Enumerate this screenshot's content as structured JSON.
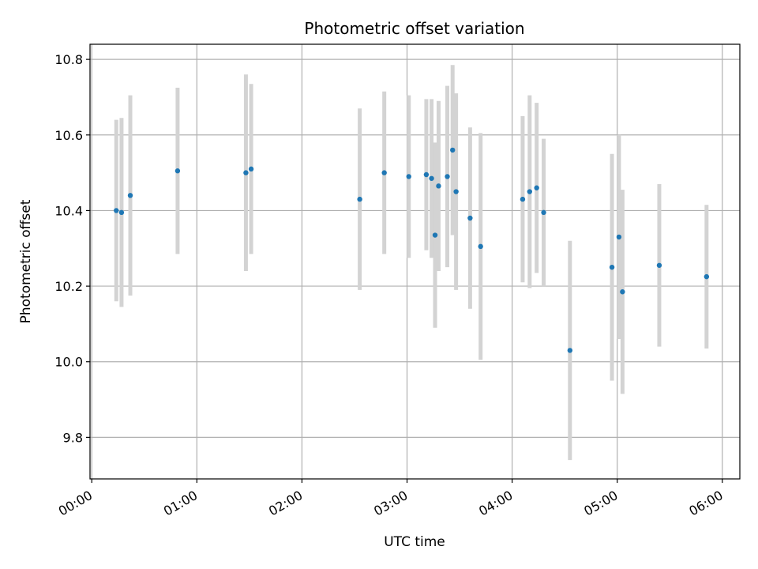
{
  "chart_data": {
    "type": "scatter",
    "title": "Photometric offset variation",
    "xlabel": "UTC time",
    "ylabel": "Photometric offset",
    "x_ticks": [
      "00:00",
      "01:00",
      "02:00",
      "03:00",
      "04:00",
      "05:00",
      "06:00"
    ],
    "y_ticks": [
      "9.8",
      "10.0",
      "10.2",
      "10.4",
      "10.6",
      "10.8"
    ],
    "xlim": [
      "23:59",
      "06:10"
    ],
    "ylim": [
      9.69,
      10.84
    ],
    "grid": true,
    "colors": {
      "marker": "#1f77b4",
      "errorbar": "#d3d3d3",
      "grid": "#b0b0b0"
    },
    "points": [
      {
        "x": "00:14",
        "y": 10.4,
        "err": 0.24
      },
      {
        "x": "00:17",
        "y": 10.395,
        "err": 0.25
      },
      {
        "x": "00:22",
        "y": 10.44,
        "err": 0.265
      },
      {
        "x": "00:49",
        "y": 10.505,
        "err": 0.22
      },
      {
        "x": "01:28",
        "y": 10.5,
        "err": 0.26
      },
      {
        "x": "01:31",
        "y": 10.51,
        "err": 0.225
      },
      {
        "x": "02:33",
        "y": 10.43,
        "err": 0.24
      },
      {
        "x": "02:47",
        "y": 10.5,
        "err": 0.215
      },
      {
        "x": "03:01",
        "y": 10.49,
        "err": 0.215
      },
      {
        "x": "03:11",
        "y": 10.495,
        "err": 0.2
      },
      {
        "x": "03:14",
        "y": 10.485,
        "err": 0.21
      },
      {
        "x": "03:16",
        "y": 10.335,
        "err": 0.245
      },
      {
        "x": "03:18",
        "y": 10.465,
        "err": 0.225
      },
      {
        "x": "03:23",
        "y": 10.49,
        "err": 0.24
      },
      {
        "x": "03:26",
        "y": 10.56,
        "err": 0.225
      },
      {
        "x": "03:28",
        "y": 10.45,
        "err": 0.26
      },
      {
        "x": "03:36",
        "y": 10.38,
        "err": 0.24
      },
      {
        "x": "03:42",
        "y": 10.305,
        "err": 0.3
      },
      {
        "x": "04:06",
        "y": 10.43,
        "err": 0.22
      },
      {
        "x": "04:10",
        "y": 10.45,
        "err": 0.255
      },
      {
        "x": "04:14",
        "y": 10.46,
        "err": 0.225
      },
      {
        "x": "04:18",
        "y": 10.395,
        "err": 0.195
      },
      {
        "x": "04:33",
        "y": 10.03,
        "err": 0.29
      },
      {
        "x": "04:57",
        "y": 10.25,
        "err": 0.3
      },
      {
        "x": "05:01",
        "y": 10.33,
        "err": 0.27
      },
      {
        "x": "05:03",
        "y": 10.185,
        "err": 0.27
      },
      {
        "x": "05:24",
        "y": 10.255,
        "err": 0.215
      },
      {
        "x": "05:51",
        "y": 10.225,
        "err": 0.19
      }
    ]
  }
}
